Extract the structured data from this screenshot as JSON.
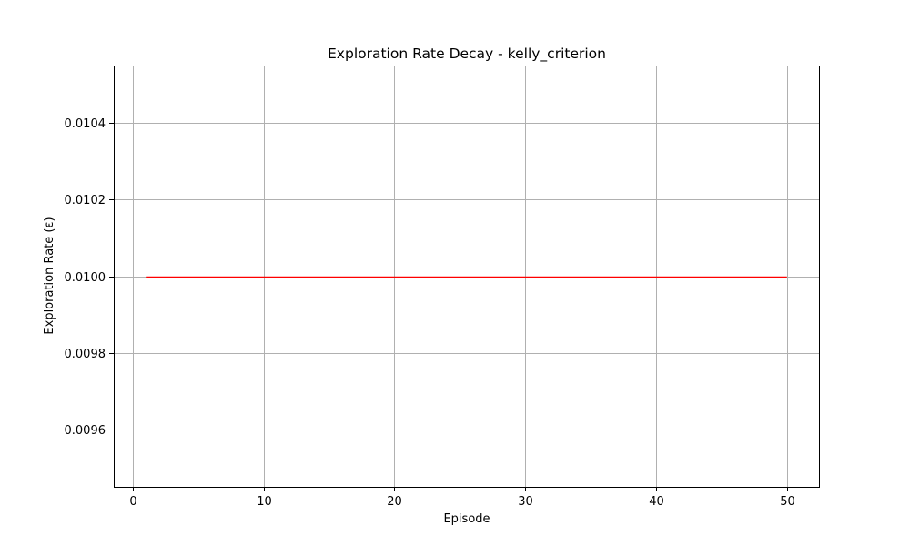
{
  "chart_data": {
    "type": "line",
    "title": "Exploration Rate Decay - kelly_criterion",
    "xlabel": "Episode",
    "ylabel": "Exploration Rate (ε)",
    "xlim": [
      -1.45,
      52.45
    ],
    "ylim": [
      0.00945,
      0.01055
    ],
    "xticks": [
      0,
      10,
      20,
      30,
      40,
      50
    ],
    "xtick_labels": [
      "0",
      "10",
      "20",
      "30",
      "40",
      "50"
    ],
    "yticks": [
      0.0096,
      0.0098,
      0.01,
      0.0102,
      0.0104
    ],
    "ytick_labels": [
      "0.0096",
      "0.0098",
      "0.0100",
      "0.0102",
      "0.0104"
    ],
    "grid": true,
    "series": [
      {
        "color": "#ff0000",
        "x": [
          1,
          50
        ],
        "y": [
          0.01,
          0.01
        ]
      }
    ]
  }
}
